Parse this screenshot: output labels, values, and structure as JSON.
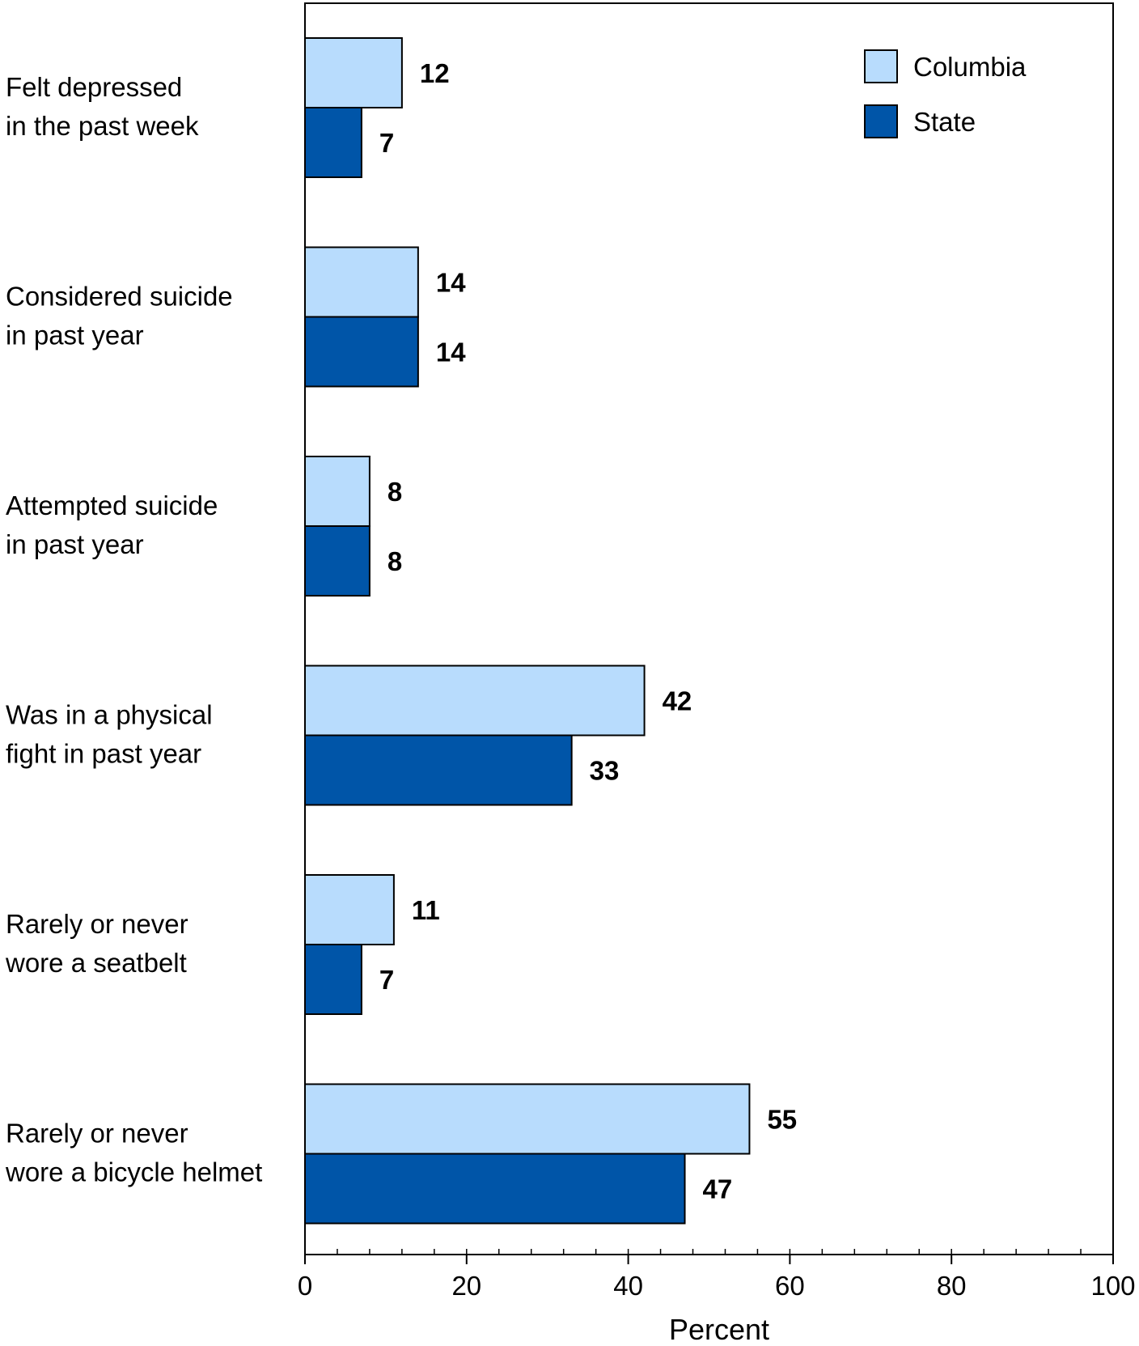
{
  "chart_data": {
    "type": "bar",
    "orientation": "horizontal",
    "categories": [
      [
        "Felt depressed",
        "in the past week"
      ],
      [
        "Considered suicide",
        "in past year"
      ],
      [
        "Attempted suicide",
        "in past year"
      ],
      [
        "Was in a physical",
        "fight in past year"
      ],
      [
        "Rarely or never",
        "wore a seatbelt"
      ],
      [
        "Rarely or never",
        "wore a bicycle helmet"
      ]
    ],
    "series": [
      {
        "name": "Columbia",
        "color": "#b8dcfd",
        "values": [
          12,
          14,
          8,
          42,
          11,
          55
        ]
      },
      {
        "name": "State",
        "color": "#0055a8",
        "values": [
          7,
          14,
          8,
          33,
          7,
          47
        ]
      }
    ],
    "xlabel": "Percent",
    "xlim": [
      0,
      100
    ],
    "xticks": [
      0,
      20,
      40,
      60,
      80,
      100
    ],
    "minor_tick_step": 4,
    "legend_position": "top-right",
    "grid": false
  }
}
